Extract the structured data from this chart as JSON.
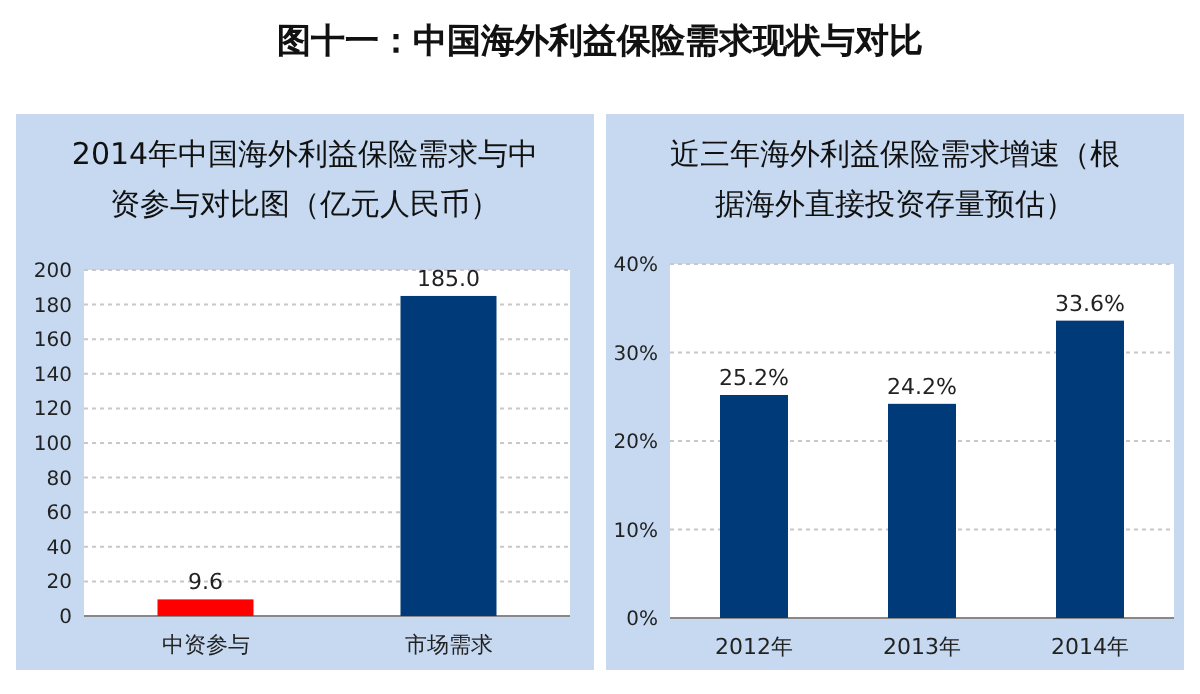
{
  "chart_data": [
    {
      "type": "bar",
      "title": "2014年中国海外利益保险需求与中资参与对比图（亿元人民币）",
      "annotations": [
        "图十一：中国海外利益保险需求现状与对比"
      ],
      "categories": [
        "中资参与",
        "市场需求"
      ],
      "values": [
        9.6,
        185.0
      ],
      "colors": [
        "#ff0000",
        "#003a78"
      ],
      "value_labels": [
        "9.6",
        "185.0"
      ],
      "ylim": [
        0,
        200
      ],
      "yticks": [
        0,
        20,
        40,
        60,
        80,
        100,
        120,
        140,
        160,
        180,
        200
      ],
      "grid": "y"
    },
    {
      "type": "bar",
      "title": "近三年海外利益保险需求增速（根据海外直接投资存量预估）",
      "categories": [
        "2012年",
        "2013年",
        "2014年"
      ],
      "values": [
        25.2,
        24.2,
        33.6
      ],
      "color": "#003a78",
      "value_labels": [
        "25.2%",
        "24.2%",
        "33.6%"
      ],
      "ylim": [
        0,
        40
      ],
      "yticks": [
        {
          "value": 0,
          "label": "0%"
        },
        {
          "value": 10,
          "label": "10%"
        },
        {
          "value": 20,
          "label": "20%"
        },
        {
          "value": 30,
          "label": "30%"
        },
        {
          "value": 40,
          "label": "40%"
        }
      ],
      "grid": "y"
    }
  ]
}
